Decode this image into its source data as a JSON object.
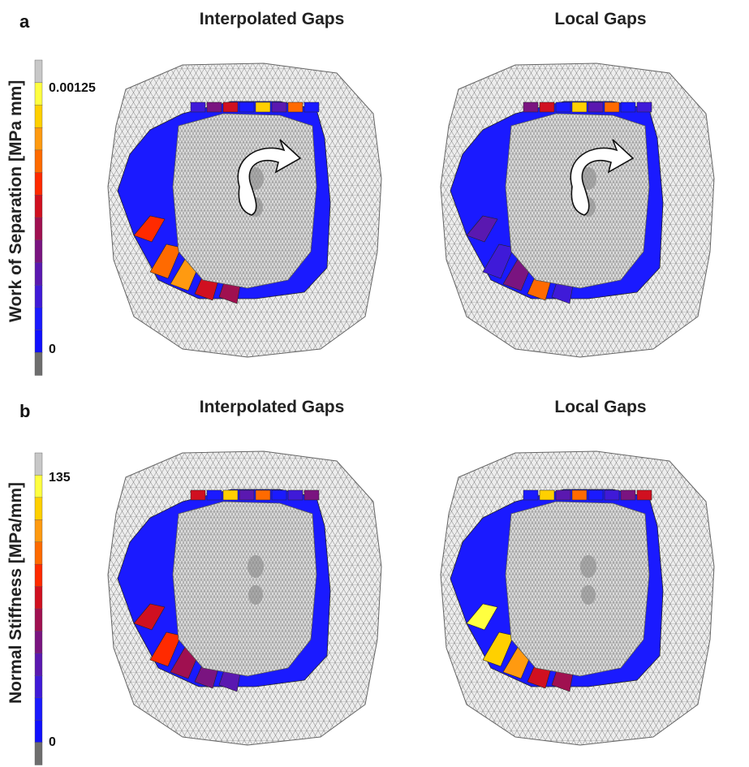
{
  "panels": [
    {
      "letter": "a",
      "colorbar_label": "Work of Separation [MPa mm]",
      "tick_max": "0.00125",
      "tick_min": "0",
      "titles": [
        "Interpolated Gaps",
        "Local Gaps"
      ]
    },
    {
      "letter": "b",
      "colorbar_label": "Normal Stiffness [MPa/mm]",
      "tick_max": "135",
      "tick_min": "0",
      "titles": [
        "Interpolated Gaps",
        "Local Gaps"
      ]
    }
  ],
  "colors": {
    "scale": [
      "#6e6e6e",
      "#1010ff",
      "#1a1aff",
      "#3f1ad8",
      "#5a18b0",
      "#7a1480",
      "#a01050",
      "#d01020",
      "#ff2a00",
      "#ff6a00",
      "#ff9a10",
      "#ffd000",
      "#ffff40",
      "#c8c8c8"
    ],
    "band_blue": "#1a1aff",
    "mesh_fill": "#e8e8e8",
    "mesh_line": "#888888"
  }
}
